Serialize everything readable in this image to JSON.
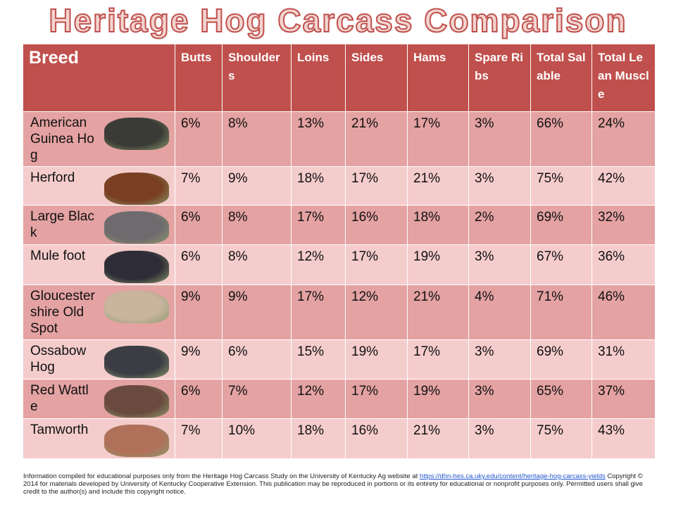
{
  "title": "Heritage Hog Carcass Comparison",
  "table": {
    "headers": [
      "Breed",
      "Butts",
      "Shoulders",
      "Loins",
      "Sides",
      "Hams",
      "Spare Ribs",
      "Total Salable",
      "Total Lean Muscle"
    ],
    "rows": [
      [
        "American Guinea Hog",
        "6%",
        "8%",
        "13%",
        "21%",
        "17%",
        "3%",
        "66%",
        "24%"
      ],
      [
        "Herford",
        "7%",
        "9%",
        "18%",
        "17%",
        "21%",
        "3%",
        "75%",
        "42%"
      ],
      [
        "Large Black",
        "6%",
        "8%",
        "17%",
        "16%",
        "18%",
        "2%",
        "69%",
        "32%"
      ],
      [
        "Mule foot",
        "6%",
        "8%",
        "12%",
        "17%",
        "19%",
        "3%",
        "67%",
        "36%"
      ],
      [
        "Gloucestershire Old Spot",
        "9%",
        "9%",
        "17%",
        "12%",
        "21%",
        "4%",
        "71%",
        "46%"
      ],
      [
        "Ossabow Hog",
        "9%",
        "6%",
        "15%",
        "19%",
        "17%",
        "3%",
        "69%",
        "31%"
      ],
      [
        "Red Wattle",
        "6%",
        "7%",
        "12%",
        "17%",
        "19%",
        "3%",
        "65%",
        "37%"
      ],
      [
        "Tamworth",
        "7%",
        "10%",
        "18%",
        "16%",
        "21%",
        "3%",
        "75%",
        "43%"
      ]
    ]
  },
  "footer": {
    "text_before": "Information compiled for educational purposes only from the Heritage Hog Carcass Study on the University of Kentucky Ag website at",
    "link": "https://dhn-hes.ca.uky.edu/content/heritage-hog-carcass-yields",
    "text_after": "Copyright © 2014 for materials developed by University of Kentucky Cooperative Extension. This publication may be reproduced in portions or its entirety for educational or nonprofit purposes only. Permitted users shall give credit to the author(s) and include this copyright notice."
  }
}
